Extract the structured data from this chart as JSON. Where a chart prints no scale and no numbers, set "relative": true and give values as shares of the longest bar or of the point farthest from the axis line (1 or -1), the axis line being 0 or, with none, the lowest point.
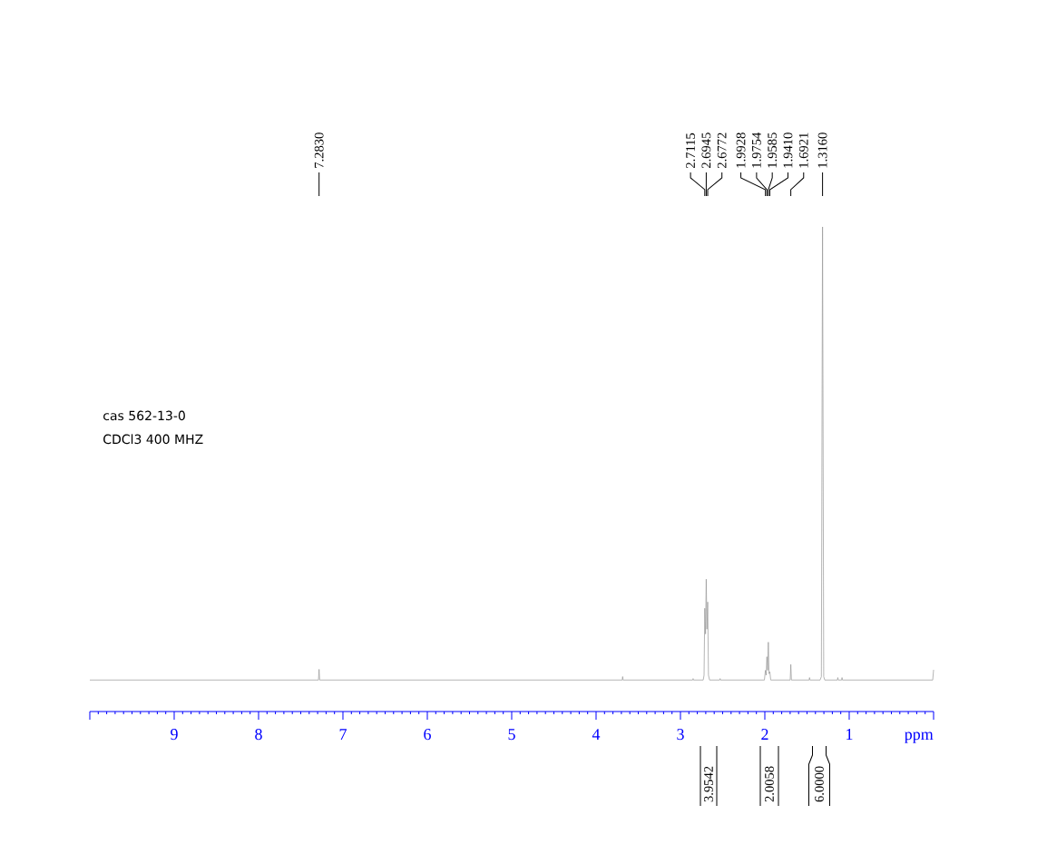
{
  "chart_data": {
    "type": "line",
    "xlabel": "ppm",
    "relative": true,
    "xlim": [
      10,
      0
    ],
    "xticks": [
      1,
      2,
      3,
      4,
      5,
      6,
      7,
      8,
      9
    ],
    "x": [
      10,
      7.29,
      7.283,
      7.276,
      3.69,
      3.685,
      3.68,
      2.855,
      2.85,
      2.845,
      2.73,
      2.72,
      2.7115,
      2.703,
      2.6945,
      2.686,
      2.6772,
      2.668,
      2.655,
      2.535,
      2.53,
      2.525,
      2.005,
      1.9928,
      1.984,
      1.9754,
      1.967,
      1.9585,
      1.95,
      1.941,
      1.93,
      1.699,
      1.6921,
      1.685,
      1.475,
      1.47,
      1.465,
      1.345,
      1.33,
      1.316,
      1.302,
      1.29,
      1.14,
      1.135,
      1.13,
      1.09,
      1.085,
      1.08,
      0.01,
      0
    ],
    "series": [
      {
        "color": "#999999",
        "values": [
          0.065,
          0.065,
          0.087,
          0.065,
          0.065,
          0.072,
          0.065,
          0.065,
          0.068,
          0.065,
          0.065,
          0.075,
          0.213,
          0.16,
          0.273,
          0.17,
          0.226,
          0.075,
          0.065,
          0.065,
          0.068,
          0.065,
          0.065,
          0.085,
          0.075,
          0.113,
          0.085,
          0.143,
          0.078,
          0.082,
          0.065,
          0.065,
          0.097,
          0.065,
          0.065,
          0.07,
          0.065,
          0.065,
          0.072,
          1,
          0.072,
          0.065,
          0.065,
          0.07,
          0.065,
          0.065,
          0.07,
          0.065,
          0.065,
          0.086
        ]
      }
    ],
    "annotations": [
      "cas 562-13-0",
      "CDCl3 400 MHZ",
      {
        "text": "7.2830",
        "x": 7.283
      },
      {
        "text": "2.7115",
        "x": 2.7115
      },
      {
        "text": "2.6945",
        "x": 2.6945
      },
      {
        "text": "2.6772",
        "x": 2.6772
      },
      {
        "text": "1.9928",
        "x": 1.9928
      },
      {
        "text": "1.9754",
        "x": 1.9754
      },
      {
        "text": "1.9585",
        "x": 1.9585
      },
      {
        "text": "1.9410",
        "x": 1.941
      },
      {
        "text": "1.6921",
        "x": 1.6921
      },
      {
        "text": "1.3160",
        "x": 1.316
      },
      "3.9542",
      "2.0058",
      "6.0000"
    ]
  }
}
